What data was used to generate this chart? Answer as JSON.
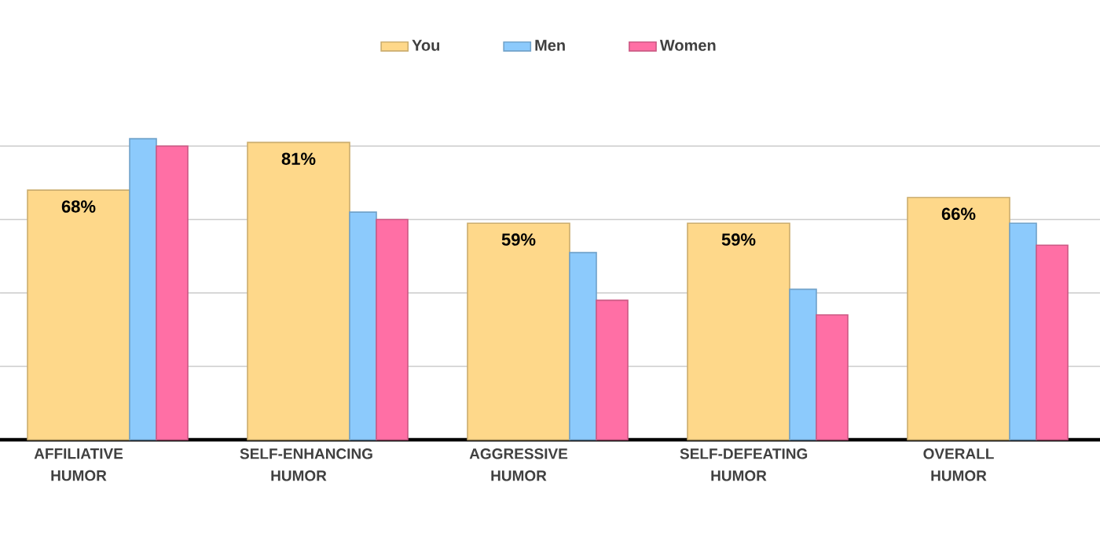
{
  "chart_data": {
    "type": "bar",
    "categories": [
      "AFFILIATIVE HUMOR",
      "SELF-ENHANCING HUMOR",
      "AGGRESSIVE HUMOR",
      "SELF-DEFEATING HUMOR",
      "OVERALL HUMOR"
    ],
    "series": [
      {
        "name": "You",
        "color": "#fed88a",
        "values": [
          68,
          81,
          59,
          59,
          66
        ],
        "value_labels": [
          "68%",
          "81%",
          "59%",
          "59%",
          "66%"
        ]
      },
      {
        "name": "Men",
        "color": "#8ccafc",
        "values": [
          82,
          62,
          51,
          41,
          59
        ]
      },
      {
        "name": "Women",
        "color": "#ff6fa5",
        "values": [
          80,
          60,
          38,
          34,
          53
        ]
      }
    ],
    "grid": "y",
    "legend": "top",
    "tick_labels": "x"
  }
}
